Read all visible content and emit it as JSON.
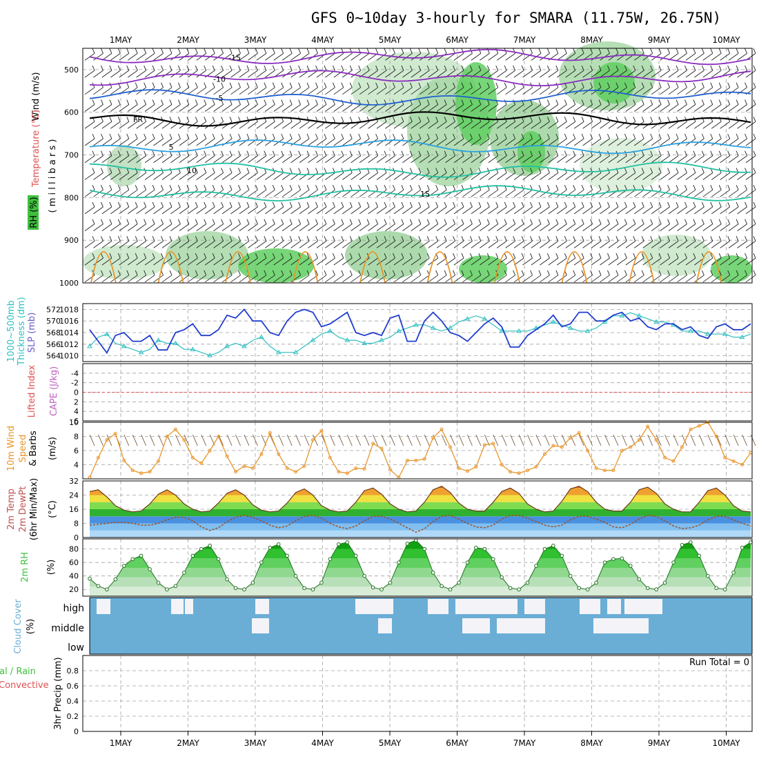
{
  "title": "GFS 0~10day 3-hourly for SMARA (11.75W, 26.75N)",
  "days": [
    "1MAY",
    "2MAY",
    "3MAY",
    "4MAY",
    "5MAY",
    "6MAY",
    "7MAY",
    "8MAY",
    "9MAY",
    "10MAY"
  ],
  "colors": {
    "slp": "#1f3ccf",
    "thickness": "#2fbfbf",
    "wind": "#e8952a",
    "barb": "#7a5a3a",
    "rh": "#3fbf3f",
    "cloud": "#6aaed6",
    "lifted": "#e05050",
    "dewpt": "#a05020",
    "iso_purple": "#8a2bbf",
    "iso_blue": "#1f5fcf",
    "iso_cyan": "#2aa0e0",
    "iso_teal": "#20c0a0",
    "iso_orange": "#e8952a"
  },
  "panel_labels": {
    "upper_wind": "Wind (m/s)",
    "upper_temp": "Temperature (°C)",
    "upper_rh": "RH (%)",
    "upper_mb": "( m i l l i b a r s )",
    "thk1": "1000~500mb",
    "thk2": "Thickness (dm)",
    "slp": "SLP (mb)",
    "lifted": "Lifted Index",
    "cape": "CAPE (J/kg)",
    "wind10a": "10m Wind",
    "wind10b": "Speed",
    "wind10c": "& Barbs",
    "wind10u": "(m/s)",
    "t1": "2m Temp",
    "t2": "2m DewPt",
    "t3": "(6hr Min/Max)",
    "tu": "(°C)",
    "rh1": "2m RH",
    "rhu": "(%)",
    "cc1": "Cloud Cover",
    "ccu": "(%)",
    "pr1": "tal / Rain",
    "pr2": "Convective",
    "pr3": "3hr Precip (mm)"
  },
  "cloud_levels": [
    "high",
    "middle",
    "low"
  ],
  "run_total": "Run Total = 0",
  "upper": {
    "pressure_ticks": [
      "500",
      "600",
      "700",
      "800",
      "900",
      "1000"
    ],
    "isotherm_labels": [
      "-15",
      "-10",
      "-5",
      "FR",
      "5",
      "10",
      "15"
    ]
  },
  "chart_data": [
    {
      "type": "line",
      "name": "pressure-level cross-section",
      "ylabel": "millibars",
      "ylim": [
        1000,
        450
      ],
      "isotherms_c": [
        -15,
        -10,
        -5,
        0,
        5,
        10,
        15
      ],
      "isotherm_pressure_mb": [
        470,
        520,
        565,
        615,
        680,
        735,
        790
      ]
    },
    {
      "type": "line",
      "name": "thickness-slp",
      "y_left_ticks": [
        564,
        566,
        568,
        570,
        572
      ],
      "y_right_ticks": [
        1010,
        1012,
        1014,
        1016,
        1018
      ],
      "series": [
        {
          "name": "SLP (mb)",
          "values": [
            1014.5,
            1012.5,
            1010.5,
            1013.5,
            1014,
            1012.5,
            1012.5,
            1013.5,
            1011,
            1011,
            1014,
            1014.5,
            1015.5,
            1013.5,
            1013.5,
            1014.5,
            1017,
            1016.5,
            1018,
            1016,
            1016,
            1014,
            1013.5,
            1016,
            1017.5,
            1018,
            1017.5,
            1015,
            1015.5,
            1016.5,
            1017.5,
            1014,
            1013.5,
            1014,
            1013.5,
            1016.5,
            1017,
            1012.5,
            1012.5,
            1016,
            1017.5,
            1016,
            1014,
            1013.5,
            1012.5,
            1014,
            1015.5,
            1016.5,
            1015,
            1011.5,
            1011.5,
            1013.5,
            1014.5,
            1015.5,
            1017,
            1015,
            1015.5,
            1017.5,
            1017.5,
            1016,
            1016,
            1017,
            1017.5,
            1016,
            1016.5,
            1015,
            1014.5,
            1015.5,
            1015.5,
            1014.5,
            1015,
            1013.5,
            1013,
            1015,
            1015.5,
            1014.5,
            1014.5,
            1015.5
          ]
        },
        {
          "name": "1000~500mb Thickness (dm)",
          "values": [
            566,
            567.5,
            568,
            566.5,
            566,
            565.5,
            565,
            565.5,
            567,
            566.5,
            566.5,
            565.5,
            565.5,
            565,
            564.5,
            565,
            566,
            566.5,
            566,
            567,
            567.5,
            566,
            565,
            565,
            565,
            566,
            567,
            568,
            568.5,
            567.5,
            567,
            567,
            566.5,
            566.5,
            567,
            567.5,
            568.5,
            569,
            569.5,
            569.5,
            569,
            568.5,
            569,
            570,
            570.5,
            571,
            570.5,
            569.5,
            568.5,
            568.5,
            568.5,
            568.5,
            569,
            569.5,
            570,
            569.5,
            569,
            568.5,
            568.5,
            569,
            570,
            571,
            571,
            571.5,
            571,
            570.5,
            570,
            570,
            569.5,
            568.5,
            568.5,
            568.5,
            568,
            568,
            568,
            567.5,
            567.5,
            568
          ]
        }
      ]
    },
    {
      "type": "line",
      "name": "lifted-index-cape",
      "ylim": [
        6,
        -6
      ],
      "y_ticks": [
        -4,
        -2,
        0,
        2,
        4,
        6
      ],
      "series": [
        {
          "name": "Lifted Index",
          "values": [
            6,
            6,
            6,
            6,
            6,
            6,
            6,
            6,
            6,
            6,
            6,
            6,
            6,
            6,
            6,
            6,
            6,
            6,
            6,
            6,
            6,
            6,
            6,
            6,
            6,
            6,
            6,
            6,
            6,
            6,
            6,
            6,
            6,
            6,
            6,
            6,
            6,
            6,
            6,
            6,
            6,
            6,
            6,
            6,
            6,
            6,
            6,
            6,
            6,
            6,
            6,
            6,
            6,
            6,
            6,
            6,
            6,
            6,
            6,
            6,
            6,
            6,
            6,
            6,
            6,
            6,
            6,
            6,
            6,
            6,
            6,
            6,
            6,
            6,
            6,
            6,
            6,
            6
          ]
        }
      ]
    },
    {
      "type": "line",
      "name": "10m-wind",
      "ylim": [
        2,
        10
      ],
      "y_ticks": [
        4,
        6,
        8,
        10
      ],
      "series": [
        {
          "name": "10m Wind Speed",
          "values": [
            2.2,
            5,
            7.5,
            8.4,
            4.6,
            3.2,
            2.8,
            3,
            4.5,
            8,
            9,
            7.5,
            5,
            4.2,
            6,
            8,
            5.2,
            3,
            3.8,
            3.5,
            5.5,
            8.5,
            5.5,
            3.5,
            3,
            3.8,
            7.5,
            8.8,
            5,
            3,
            2.8,
            3.5,
            3.4,
            7,
            6.3,
            3.3,
            2.2,
            4.6,
            4.6,
            4.8,
            7.8,
            9,
            6.5,
            3.5,
            3.1,
            3.7,
            6.8,
            7,
            4,
            3,
            2.8,
            3.2,
            3.7,
            5.5,
            6.7,
            6.5,
            7.8,
            8.5,
            6,
            3.5,
            3.2,
            3.2,
            6,
            6.5,
            7.5,
            9.4,
            7.5,
            5,
            4.5,
            6.5,
            9,
            9.5,
            10,
            8,
            5,
            4.5,
            4,
            5.7
          ]
        }
      ]
    },
    {
      "type": "area",
      "name": "2m-temp",
      "ylim": [
        0,
        32
      ],
      "y_ticks": [
        0,
        8,
        16,
        24,
        32
      ],
      "series": [
        {
          "name": "2m Temp",
          "values": [
            26,
            27,
            23,
            18,
            15.5,
            14.5,
            15,
            19,
            24.5,
            27,
            24,
            19,
            16,
            14.5,
            15,
            19.5,
            25,
            27,
            24,
            18.5,
            15.5,
            14.5,
            15,
            19.5,
            25.5,
            27.5,
            24,
            18,
            15.5,
            14.5,
            15,
            20,
            26.5,
            28,
            24.5,
            19,
            16,
            14.5,
            15,
            20,
            27,
            29,
            25.5,
            19.5,
            16,
            15,
            15,
            20,
            26,
            28,
            25,
            19,
            16,
            14.5,
            15,
            20.5,
            27.5,
            29,
            26,
            20,
            16,
            15,
            15,
            20,
            27,
            28.5,
            25,
            19,
            16,
            14.5,
            14.5,
            20,
            26.5,
            28,
            24,
            18,
            15,
            14.5
          ]
        },
        {
          "name": "2m DewPt",
          "values": [
            7,
            7.5,
            8,
            8.5,
            8.5,
            8,
            7,
            7,
            8,
            10,
            11.5,
            11.5,
            9.5,
            6,
            4,
            5.5,
            9,
            11.5,
            12.5,
            11.5,
            9.5,
            7,
            5.5,
            6.5,
            9.5,
            12,
            12.5,
            11,
            8,
            6,
            5,
            6.5,
            9.5,
            12,
            12,
            10.5,
            8,
            5.5,
            3,
            5,
            9,
            12,
            12.5,
            10.5,
            8,
            6,
            5.5,
            7,
            10.5,
            12.5,
            12.5,
            11,
            9,
            7,
            6,
            7,
            10,
            12,
            12,
            10.5,
            8.5,
            6,
            5.5,
            7.5,
            10.5,
            12.5,
            12,
            9.5,
            6.5,
            5,
            5.5,
            7,
            10,
            12,
            12,
            10,
            8,
            6.5
          ]
        }
      ]
    },
    {
      "type": "area",
      "name": "2m-rh",
      "ylim": [
        10,
        95
      ],
      "y_ticks": [
        20,
        40,
        60,
        80
      ],
      "series": [
        {
          "name": "2m RH",
          "values": [
            36,
            25,
            20,
            35,
            55,
            65,
            70,
            50,
            30,
            20,
            25,
            45,
            70,
            80,
            85,
            65,
            35,
            22,
            20,
            30,
            60,
            82,
            87,
            70,
            40,
            22,
            20,
            30,
            65,
            87,
            90,
            70,
            40,
            23,
            20,
            30,
            60,
            88,
            93,
            80,
            45,
            25,
            20,
            30,
            60,
            82,
            80,
            65,
            38,
            22,
            20,
            30,
            55,
            80,
            85,
            70,
            40,
            22,
            20,
            30,
            60,
            65,
            66,
            55,
            35,
            22,
            20,
            30,
            60,
            86,
            90,
            70,
            40,
            22,
            20,
            45,
            82,
            90
          ]
        }
      ]
    },
    {
      "type": "heatmap",
      "name": "cloud-cover",
      "categories": [
        "high",
        "middle",
        "low"
      ]
    },
    {
      "type": "bar",
      "name": "3hr-precip",
      "ylim": [
        0,
        1
      ],
      "y_ticks": [
        0,
        0.2,
        0.4,
        0.6,
        0.8
      ],
      "values": []
    }
  ]
}
